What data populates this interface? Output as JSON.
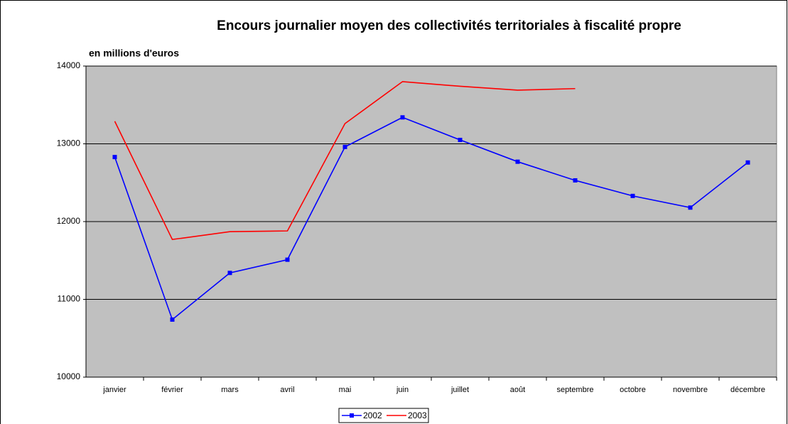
{
  "chart_data": {
    "type": "line",
    "title": "Encours journalier moyen des collectivités territoriales à fiscalité propre",
    "y_label": "en millions d'euros",
    "categories": [
      "janvier",
      "février",
      "mars",
      "avril",
      "mai",
      "juin",
      "juillet",
      "août",
      "septembre",
      "octobre",
      "novembre",
      "décembre"
    ],
    "series": [
      {
        "name": "2002",
        "color": "#0000ff",
        "marker": "square",
        "values": [
          12830,
          10740,
          11340,
          11510,
          12960,
          13340,
          13050,
          12770,
          12530,
          12330,
          12180,
          12760
        ]
      },
      {
        "name": "2003",
        "color": "#ff0000",
        "marker": "none",
        "values": [
          13290,
          11770,
          11870,
          11880,
          13260,
          13800,
          13740,
          13690,
          13710,
          null,
          null,
          null
        ]
      }
    ],
    "ylim": [
      10000,
      14000
    ],
    "yticks": [
      10000,
      11000,
      12000,
      13000,
      14000
    ],
    "grid": true,
    "legend": "bottom"
  }
}
